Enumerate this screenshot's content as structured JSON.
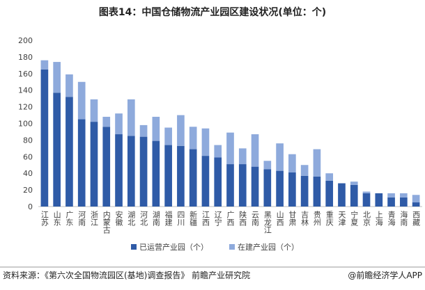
{
  "chart_data": {
    "type": "stacked-bar",
    "title": "图表14：中国仓储物流产业园区建设状况(单位：个)",
    "categories": [
      "江苏",
      "山东",
      "广东",
      "河南",
      "浙江",
      "内蒙古",
      "安徽",
      "湖北",
      "河北",
      "湖南",
      "福建",
      "四川",
      "新疆",
      "江西",
      "辽宁",
      "广西",
      "陕西",
      "云南",
      "黑龙江",
      "山西",
      "甘肃",
      "吉林",
      "贵州",
      "重庆",
      "天津",
      "宁夏",
      "北京",
      "上海",
      "青海",
      "海南",
      "西藏"
    ],
    "series": [
      {
        "name": "已运营产业园（个）",
        "color": "#2f5ba7",
        "values": [
          165,
          137,
          132,
          105,
          102,
          96,
          87,
          85,
          84,
          79,
          74,
          73,
          69,
          61,
          59,
          51,
          51,
          48,
          45,
          43,
          41,
          37,
          36,
          31,
          28,
          26,
          16,
          16,
          11,
          11,
          5
        ]
      },
      {
        "name": "在建产业园（个）",
        "color": "#8eaadc",
        "values": [
          11,
          37,
          27,
          45,
          27,
          12,
          25,
          44,
          14,
          29,
          21,
          37,
          27,
          33,
          15,
          38,
          19,
          39,
          10,
          33,
          22,
          13,
          33,
          9,
          0,
          4,
          2,
          0,
          5,
          5,
          9
        ]
      }
    ],
    "ylim": [
      0,
      200
    ],
    "yticks": [
      0,
      20,
      40,
      60,
      80,
      100,
      120,
      140,
      160,
      180,
      200
    ],
    "grid": false,
    "source": "资料来源：《第六次全国物流园区(基地)调查报告》 前瞻产业研究院",
    "credit": "@前瞻经济学人APP"
  }
}
